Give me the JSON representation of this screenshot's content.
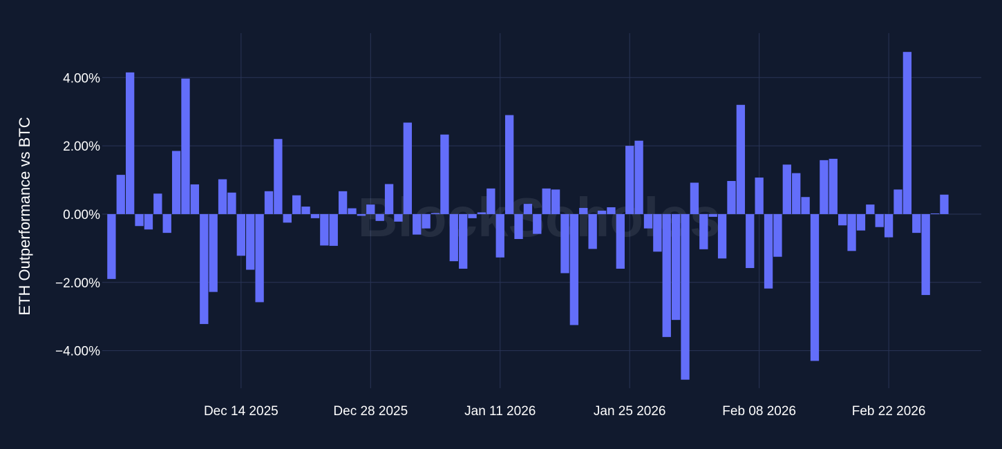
{
  "watermark": "BlockScholes",
  "colors": {
    "background": "#111a2e",
    "bar": "#636efa",
    "grid": "#2a3557",
    "text": "#ffffff"
  },
  "chart_data": {
    "type": "bar",
    "title": "",
    "xlabel": "",
    "ylabel": "ETH Outperformance vs BTC",
    "y_unit": "%",
    "ylim": [
      -5.1,
      5.3
    ],
    "yticks": [
      4,
      2,
      0,
      -2,
      -4
    ],
    "ytick_labels": [
      "4.00%",
      "2.00%",
      "0.00%",
      "−2.00%",
      "−4.00%"
    ],
    "x_start_date": "2025-11-30",
    "xlim": [
      "2025-11-29",
      "2026-03-04"
    ],
    "xticks": [
      "2025-12-14",
      "2025-12-28",
      "2026-01-11",
      "2026-01-25",
      "2026-02-08",
      "2026-02-22"
    ],
    "xtick_labels": [
      "Dec 14 2025",
      "Dec 28 2025",
      "Jan 11 2026",
      "Jan 25 2026",
      "Feb 08 2026",
      "Feb 22 2026"
    ],
    "grid": true,
    "values": [
      -1.9,
      1.15,
      4.15,
      -0.35,
      -0.45,
      0.6,
      -0.55,
      1.85,
      3.97,
      0.87,
      -3.22,
      -2.28,
      1.02,
      0.63,
      -1.22,
      -1.63,
      -2.58,
      0.67,
      2.2,
      -0.25,
      0.55,
      0.22,
      -0.12,
      -0.92,
      -0.93,
      0.67,
      0.17,
      -0.05,
      0.28,
      -0.2,
      0.88,
      -0.22,
      2.68,
      -0.6,
      -0.42,
      0.03,
      2.33,
      -1.38,
      -1.6,
      -0.12,
      0.05,
      0.75,
      -1.27,
      2.9,
      -0.73,
      0.3,
      -0.58,
      0.75,
      0.72,
      -1.73,
      -3.25,
      0.18,
      -1.02,
      0.1,
      0.2,
      -1.6,
      2.0,
      2.15,
      -0.42,
      -1.1,
      -3.6,
      -3.1,
      -4.85,
      0.92,
      -1.03,
      -0.08,
      -1.3,
      0.97,
      3.2,
      -1.58,
      1.07,
      -2.18,
      -1.25,
      1.45,
      1.2,
      0.5,
      -4.3,
      1.58,
      1.62,
      -0.33,
      -1.08,
      -0.48,
      0.28,
      -0.38,
      -0.68,
      0.72,
      4.75,
      -0.55,
      -2.37,
      0.02,
      0.57
    ]
  }
}
